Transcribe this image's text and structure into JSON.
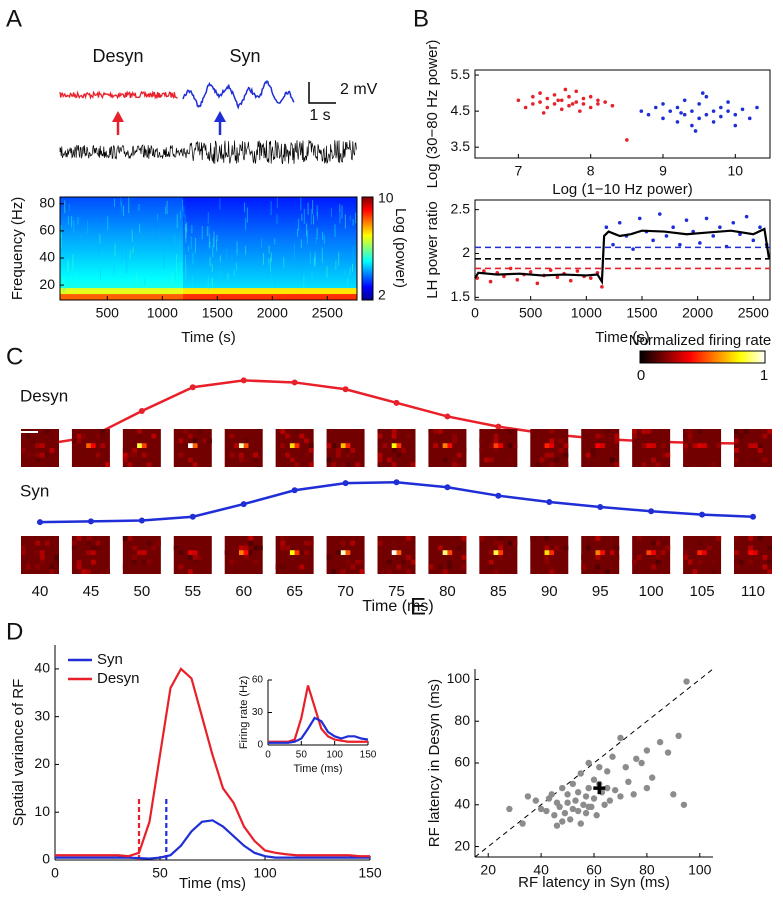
{
  "panel_labels": [
    "A",
    "B",
    "C",
    "D",
    "E"
  ],
  "chart_data": [
    {
      "type": "traces",
      "series": [
        {
          "name": "Desyn",
          "color": "#e8202a"
        },
        {
          "name": "Syn",
          "color": "#1f2ed6"
        }
      ],
      "scale_y": "2 mV",
      "scale_x": "1 s"
    },
    {
      "type": "heatmap",
      "xlabel": "Time (s)",
      "ylabel": "Frequency (Hz)",
      "xlim": [
        70,
        2770
      ],
      "xticks": [
        500,
        1000,
        1500,
        2000,
        2500
      ],
      "ylim": [
        9,
        85
      ],
      "yticks": [
        20,
        40,
        60,
        80
      ],
      "box": true,
      "colorbar_label": "Log (power)",
      "clim": [
        2,
        10
      ]
    },
    {
      "type": "scatter",
      "xlabel": "Log (1−10 Hz power)",
      "ylabel": "Log (30−80 Hz power)",
      "xlim": [
        6.4,
        10.48
      ],
      "xticks": [
        7,
        8,
        9,
        10
      ],
      "ylim": [
        3.2,
        5.64
      ],
      "yticks": [
        3.5,
        4.5,
        5.5
      ],
      "box": true,
      "series": [
        {
          "color": "#e8202a",
          "x": [
            7.0,
            7.1,
            7.2,
            7.2,
            7.3,
            7.3,
            7.4,
            7.4,
            7.5,
            7.5,
            7.6,
            7.6,
            7.7,
            7.7,
            7.8,
            7.8,
            7.9,
            7.9,
            8.0,
            8.0,
            8.1,
            8.1,
            8.2,
            8.3,
            7.35,
            7.65,
            7.85,
            7.55,
            7.75,
            8.5
          ],
          "values": [
            4.8,
            4.6,
            4.9,
            4.7,
            4.75,
            5.0,
            4.6,
            4.85,
            4.7,
            4.95,
            4.8,
            4.55,
            4.9,
            4.65,
            4.75,
            5.05,
            4.7,
            4.85,
            4.6,
            4.9,
            4.8,
            4.7,
            4.75,
            4.65,
            4.45,
            5.1,
            4.5,
            4.8,
            4.7,
            3.7
          ]
        },
        {
          "color": "#1f2ed6",
          "x": [
            8.7,
            8.8,
            8.9,
            9.0,
            9.0,
            9.1,
            9.2,
            9.2,
            9.3,
            9.3,
            9.4,
            9.4,
            9.5,
            9.5,
            9.6,
            9.6,
            9.7,
            9.7,
            9.8,
            9.8,
            9.9,
            9.9,
            10.0,
            10.0,
            10.1,
            10.2,
            10.3,
            9.45,
            9.55,
            9.25
          ],
          "values": [
            4.5,
            4.4,
            4.6,
            4.3,
            4.7,
            4.5,
            4.2,
            4.6,
            4.4,
            4.8,
            4.5,
            4.1,
            4.3,
            4.7,
            4.4,
            4.9,
            4.5,
            4.2,
            4.6,
            4.35,
            4.5,
            4.75,
            4.4,
            4.1,
            4.55,
            4.3,
            4.6,
            3.95,
            5.0,
            4.45
          ]
        }
      ]
    },
    {
      "type": "line",
      "xlabel": "Time (s)",
      "ylabel": "LH power ratio",
      "xlim": [
        0,
        2650
      ],
      "xticks": [
        0,
        500,
        1000,
        1500,
        2000,
        2500
      ],
      "ylim": [
        1.47,
        2.61
      ],
      "yticks": [
        1.5,
        2,
        2.5
      ],
      "box": true,
      "series": [
        {
          "color": "#e8202a",
          "style": "dots",
          "x": [
            20,
            80,
            140,
            200,
            260,
            320,
            380,
            440,
            500,
            560,
            620,
            680,
            740,
            800,
            860,
            920,
            980,
            1040,
            1100,
            1140
          ],
          "values": [
            1.72,
            1.8,
            1.68,
            1.78,
            1.74,
            1.83,
            1.7,
            1.76,
            1.79,
            1.66,
            1.75,
            1.81,
            1.73,
            1.77,
            1.69,
            1.8,
            1.74,
            1.72,
            1.78,
            1.62
          ]
        },
        {
          "color": "#1f2ed6",
          "style": "dots",
          "x": [
            1180,
            1240,
            1300,
            1360,
            1420,
            1480,
            1540,
            1600,
            1660,
            1720,
            1780,
            1840,
            1900,
            1960,
            2020,
            2080,
            2140,
            2200,
            2260,
            2320,
            2380,
            2440,
            2500,
            2560,
            2620
          ],
          "values": [
            2.3,
            2.1,
            2.35,
            2.2,
            2.05,
            2.4,
            2.25,
            2.15,
            2.45,
            2.2,
            2.3,
            2.1,
            2.38,
            2.25,
            2.12,
            2.4,
            2.2,
            2.3,
            2.08,
            2.35,
            2.22,
            2.42,
            2.15,
            2.3,
            2.1
          ]
        },
        {
          "color": "#000000",
          "style": "line",
          "x": [
            0,
            30,
            200,
            400,
            600,
            800,
            1000,
            1100,
            1140,
            1160,
            1200,
            1300,
            1400,
            1500,
            1700,
            1900,
            2100,
            2300,
            2500,
            2600,
            2640
          ],
          "values": [
            1.72,
            1.78,
            1.76,
            1.77,
            1.75,
            1.76,
            1.75,
            1.76,
            1.68,
            2.2,
            2.25,
            2.2,
            2.22,
            2.26,
            2.25,
            2.22,
            2.24,
            2.26,
            2.22,
            2.28,
            1.95
          ]
        }
      ],
      "hlines": [
        {
          "value": 2.07,
          "color": "#1f2ed6"
        },
        {
          "value": 1.94,
          "color": "#000000"
        },
        {
          "value": 1.83,
          "color": "#e8202a"
        }
      ]
    },
    {
      "type": "rf",
      "xlabel": "Time (ms)",
      "x": [
        40,
        45,
        50,
        55,
        60,
        65,
        70,
        75,
        80,
        85,
        90,
        95,
        100,
        105,
        110
      ],
      "scale": "60°",
      "colorbar_label": "Normalized firing rate",
      "clim": [
        0,
        1
      ],
      "series": [
        {
          "name": "Desyn",
          "color": "#e8202a",
          "values": [
            0.0,
            0.12,
            0.5,
            0.85,
            0.95,
            0.92,
            0.82,
            0.62,
            0.42,
            0.27,
            0.16,
            0.09,
            0.05,
            0.03,
            0.02
          ],
          "rf_peak": [
            0.25,
            0.55,
            0.85,
            1,
            0.95,
            0.75,
            0.7,
            0.8,
            0.6,
            0.5,
            0.45,
            0.4,
            0.35,
            0.35,
            0.3
          ]
        },
        {
          "name": "Syn",
          "color": "#1f2ed6",
          "values": [
            0.02,
            0.04,
            0.06,
            0.15,
            0.45,
            0.78,
            0.95,
            0.97,
            0.85,
            0.65,
            0.5,
            0.38,
            0.28,
            0.2,
            0.15
          ],
          "rf_peak": [
            0.2,
            0.25,
            0.3,
            0.35,
            0.6,
            0.8,
            0.95,
            1,
            0.9,
            0.85,
            0.75,
            0.6,
            0.5,
            0.45,
            0.4
          ]
        }
      ]
    },
    {
      "type": "line",
      "xlabel": "Time (ms)",
      "ylabel": "Spatial variance of RF",
      "xlim": [
        0,
        150
      ],
      "xticks": [
        0,
        50,
        100,
        150
      ],
      "ylim": [
        0,
        45
      ],
      "yticks": [
        0,
        10,
        20,
        30,
        40
      ],
      "box": false,
      "x": [
        0,
        5,
        10,
        15,
        20,
        25,
        30,
        35,
        40,
        45,
        50,
        55,
        60,
        65,
        70,
        75,
        80,
        85,
        90,
        95,
        100,
        105,
        110,
        115,
        120,
        125,
        130,
        135,
        140,
        145,
        150
      ],
      "series": [
        {
          "name": "Syn",
          "color": "#1f2ed6",
          "values": [
            0.5,
            0.5,
            0.5,
            0.5,
            0.5,
            0.5,
            0.5,
            0.5,
            0.4,
            0.3,
            0.5,
            1,
            3,
            6,
            8,
            8.3,
            7,
            5,
            3,
            1.5,
            0.8,
            0.5,
            0.5,
            0.5,
            0.5,
            0.5,
            0.5,
            0.5,
            0.5,
            0.5,
            0.5
          ]
        },
        {
          "name": "Desyn",
          "color": "#e8202a",
          "values": [
            1,
            1,
            1,
            1,
            1,
            1,
            1,
            0.8,
            1.5,
            8,
            22,
            36,
            40,
            38,
            30,
            22,
            15,
            12,
            7,
            4,
            2,
            1.5,
            1.2,
            1,
            1,
            1,
            1,
            1,
            1,
            0.8,
            0.8
          ]
        }
      ],
      "vlines": [
        {
          "value": 40,
          "top": 13,
          "color": "#e8202a"
        },
        {
          "value": 53,
          "top": 13,
          "color": "#1f2ed6"
        }
      ]
    },
    {
      "type": "line",
      "xlabel": "Time (ms)",
      "ylabel": "Firing rate (Hz)",
      "xlim": [
        0,
        150
      ],
      "xticks": [
        0,
        50,
        100,
        150
      ],
      "ylim": [
        0,
        60
      ],
      "yticks": [
        0,
        30,
        60
      ],
      "box": false,
      "x": [
        0,
        10,
        20,
        30,
        40,
        50,
        60,
        70,
        80,
        90,
        100,
        110,
        120,
        130,
        140,
        150
      ],
      "series": [
        {
          "color": "#e8202a",
          "values": [
            3,
            3,
            3,
            3,
            5,
            25,
            55,
            35,
            15,
            8,
            5,
            4,
            3,
            3,
            3,
            3
          ]
        },
        {
          "color": "#1f2ed6",
          "values": [
            2,
            2,
            2,
            2,
            3,
            6,
            15,
            25,
            22,
            12,
            8,
            6,
            8,
            8,
            6,
            5
          ]
        }
      ]
    },
    {
      "type": "scatter",
      "xlabel": "RF latency in Syn (ms)",
      "ylabel": "RF latency in Desyn (ms)",
      "xlim": [
        15,
        105
      ],
      "xticks": [
        20,
        40,
        60,
        80,
        100
      ],
      "ylim": [
        15,
        105
      ],
      "yticks": [
        20,
        40,
        60,
        80,
        100
      ],
      "box": false,
      "diagonal": true,
      "series": [
        {
          "color": "#8c8c8c",
          "x": [
            28,
            33,
            35,
            38,
            40,
            42,
            43,
            44,
            45,
            46,
            46,
            47,
            48,
            48,
            49,
            50,
            50,
            51,
            52,
            52,
            53,
            54,
            54,
            55,
            55,
            56,
            57,
            57,
            58,
            58,
            59,
            60,
            60,
            61,
            62,
            63,
            64,
            65,
            65,
            66,
            67,
            68,
            70,
            70,
            72,
            73,
            75,
            76,
            78,
            80,
            80,
            82,
            85,
            88,
            90,
            92,
            94,
            95,
            62,
            58
          ],
          "values": [
            38,
            31,
            44,
            42,
            38,
            37,
            43,
            45,
            35,
            30,
            41,
            39,
            32,
            48,
            36,
            41,
            45,
            33,
            38,
            50,
            42,
            37,
            46,
            55,
            31,
            40,
            44,
            36,
            48,
            60,
            39,
            52,
            43,
            35,
            50,
            46,
            40,
            48,
            56,
            42,
            63,
            47,
            44,
            72,
            58,
            51,
            45,
            62,
            60,
            66,
            48,
            53,
            70,
            65,
            45,
            73,
            40,
            99,
            58,
            39
          ]
        }
      ],
      "mean": {
        "x": 62,
        "y": 48
      }
    }
  ]
}
